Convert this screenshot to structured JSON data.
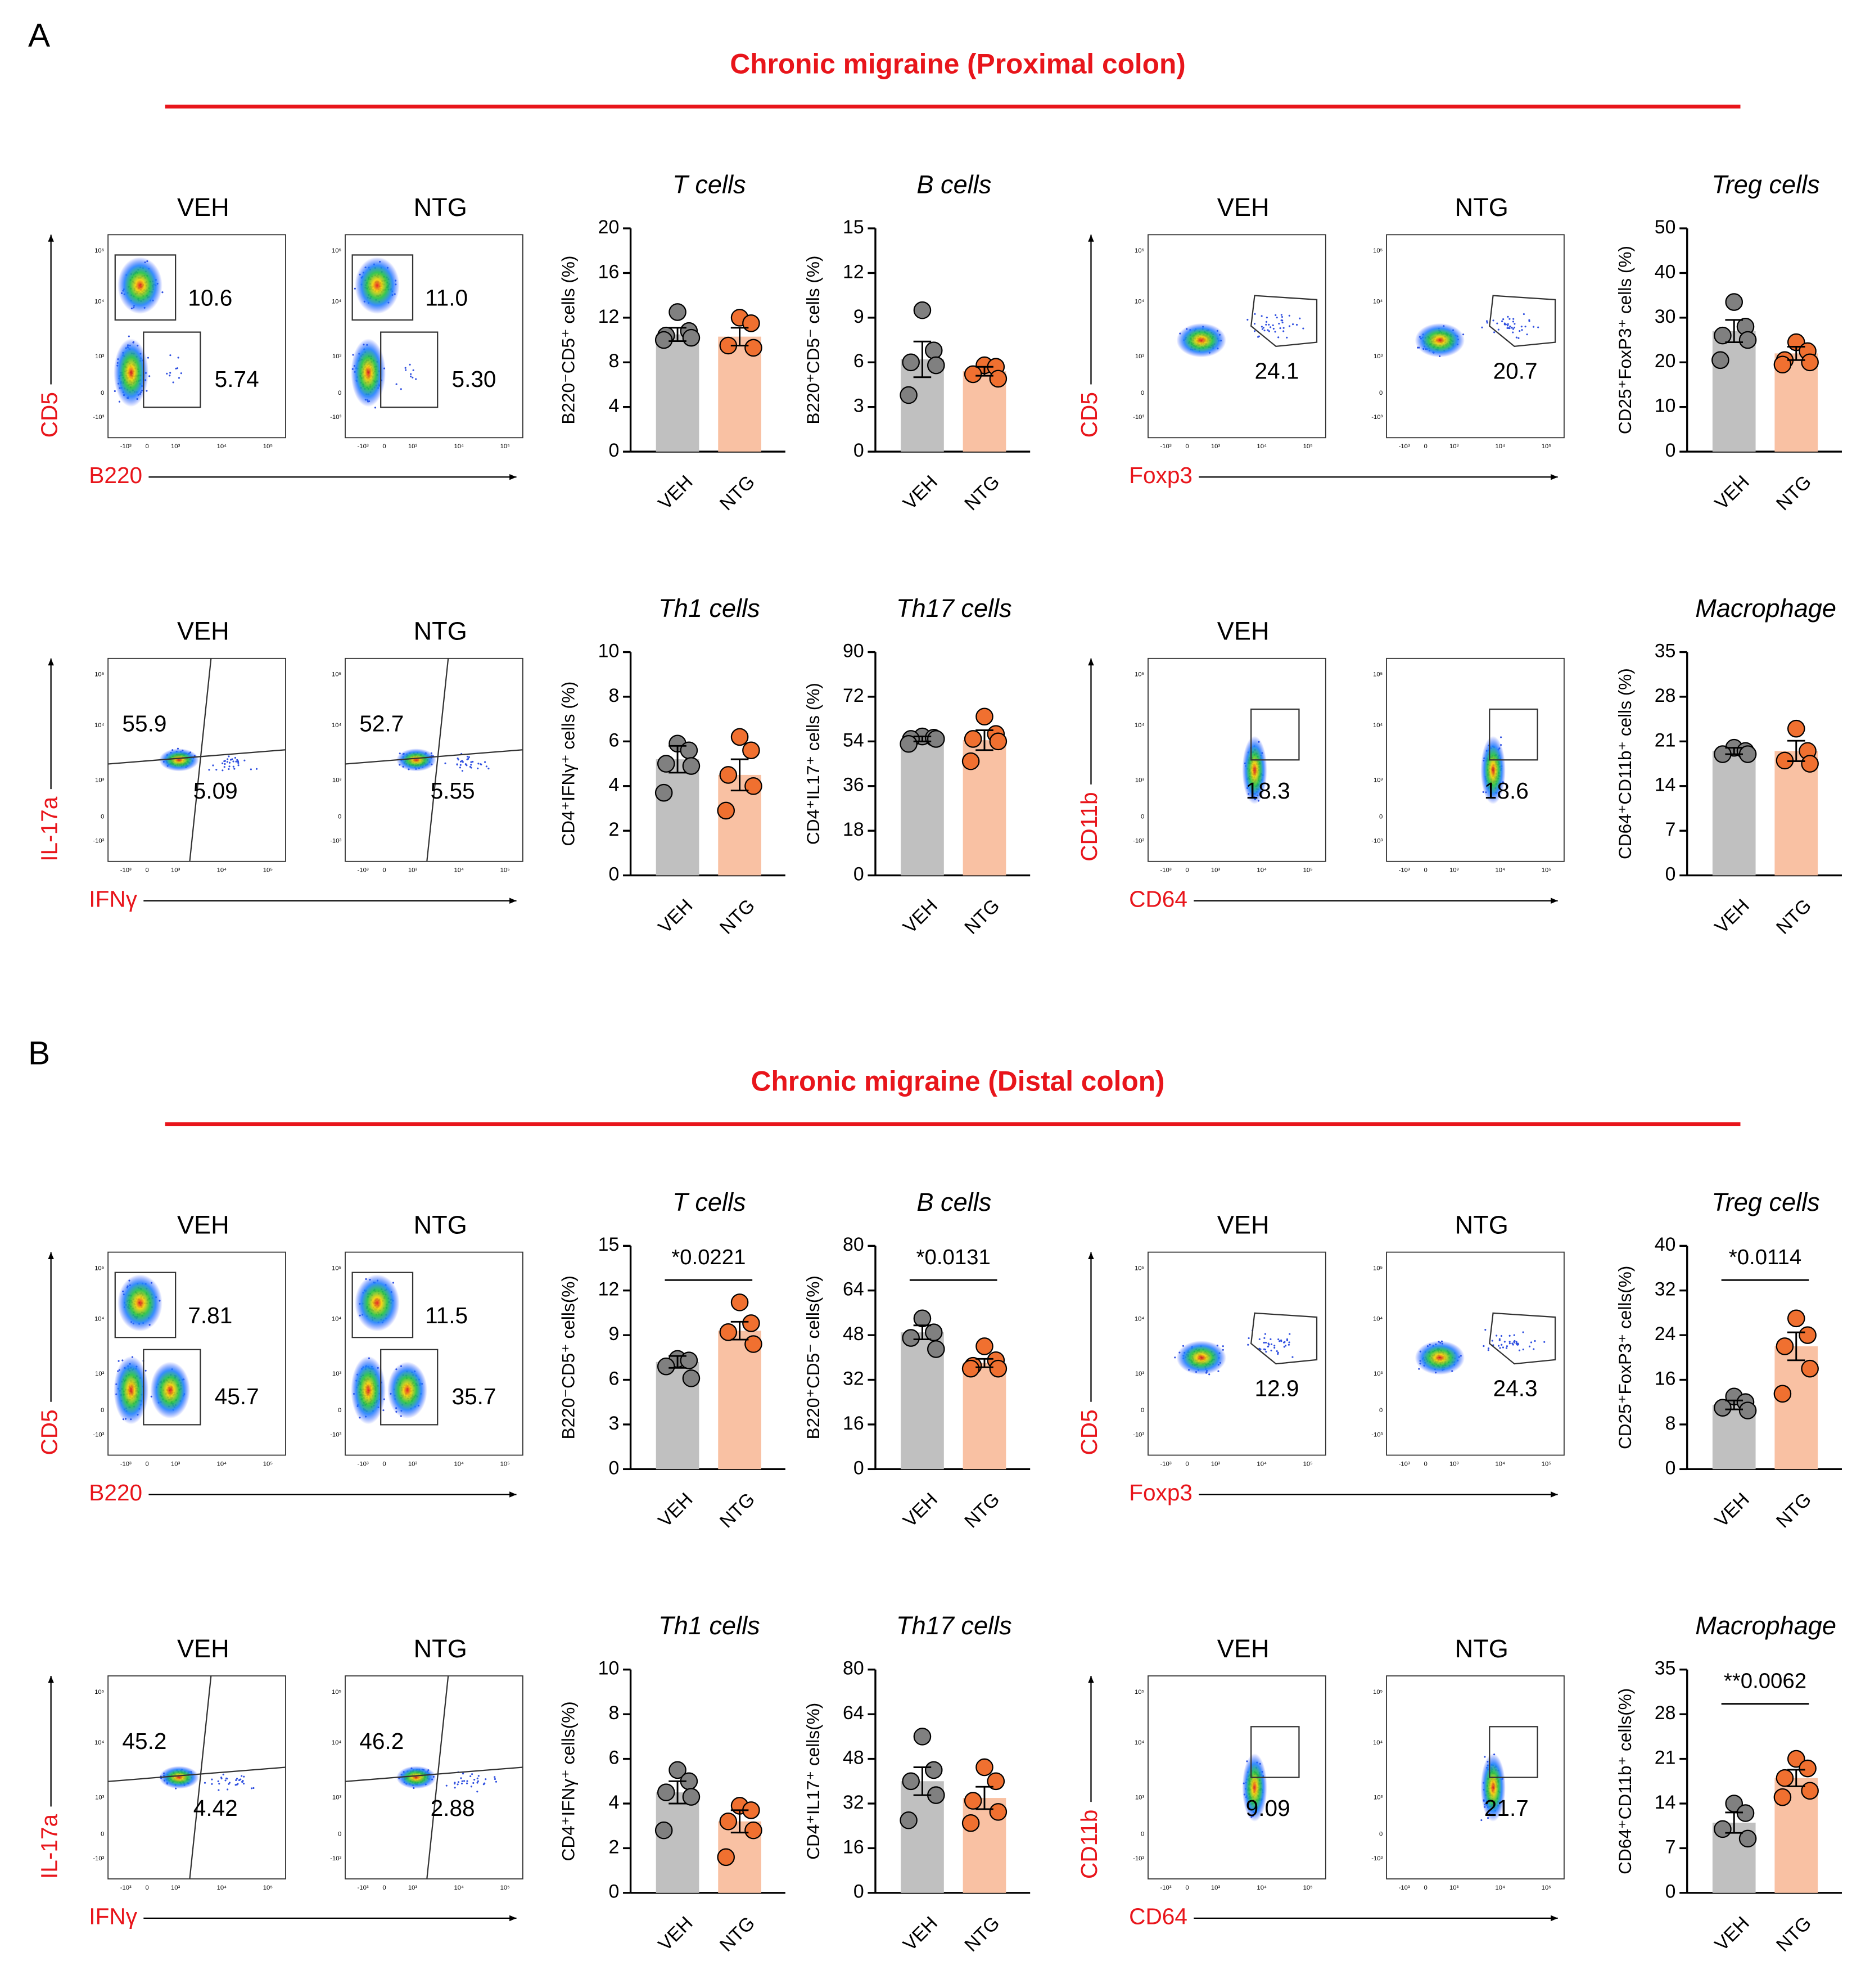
{
  "panels": [
    {
      "letter": "A",
      "title": "Chronic migraine (Proximal colon)",
      "flows": [
        {
          "y_label": "CD5",
          "x_label": "B220",
          "plots": [
            {
              "label": "VEH",
              "gates": [
                "10.6",
                "5.74"
              ]
            },
            {
              "label": "NTG",
              "gates": [
                "11.0",
                "5.30"
              ]
            }
          ]
        },
        {
          "y_label": "CD5",
          "x_label": "Foxp3",
          "plots": [
            {
              "label": "VEH",
              "gates": [
                "24.1"
              ]
            },
            {
              "label": "NTG",
              "gates": [
                "20.7"
              ]
            }
          ]
        },
        {
          "y_label": "IL-17a",
          "x_label": "IFNγ",
          "plots": [
            {
              "label": "VEH",
              "gates": [
                "55.9",
                "5.09"
              ]
            },
            {
              "label": "NTG",
              "gates": [
                "52.7",
                "5.55"
              ]
            }
          ]
        },
        {
          "y_label": "CD11b",
          "x_label": "CD64",
          "plots": [
            {
              "label": "VEH",
              "gates": [
                "18.3"
              ]
            },
            {
              "gates": [
                "18.6"
              ]
            }
          ]
        }
      ]
    },
    {
      "letter": "B",
      "title": "Chronic migraine (Distal colon)",
      "flows": [
        {
          "y_label": "CD5",
          "x_label": "B220",
          "plots": [
            {
              "label": "VEH",
              "gates": [
                "7.81",
                "45.7"
              ]
            },
            {
              "label": "NTG",
              "gates": [
                "11.5",
                "35.7"
              ]
            }
          ]
        },
        {
          "y_label": "CD5",
          "x_label": "Foxp3",
          "plots": [
            {
              "label": "VEH",
              "gates": [
                "12.9"
              ]
            },
            {
              "label": "NTG",
              "gates": [
                "24.3"
              ]
            }
          ]
        },
        {
          "y_label": "IL-17a",
          "x_label": "IFNγ",
          "plots": [
            {
              "label": "VEH",
              "gates": [
                "45.2",
                "4.42"
              ]
            },
            {
              "label": "NTG",
              "gates": [
                "46.2",
                "2.88"
              ]
            }
          ]
        },
        {
          "y_label": "CD11b",
          "x_label": "CD64",
          "plots": [
            {
              "label": "VEH",
              "gates": [
                "9.09"
              ]
            },
            {
              "label": "NTG",
              "gates": [
                "21.7"
              ]
            }
          ]
        }
      ]
    }
  ],
  "flow_axis_ticks": [
    "-10³",
    "0",
    "10³",
    "10⁴",
    "10⁵"
  ],
  "chart_data": [
    {
      "type": "bar",
      "title": "T cells",
      "ylabel": "B220⁻CD5⁺ cells (%)",
      "categories": [
        "VEH",
        "NTG"
      ],
      "values": [
        10.5,
        10.3
      ],
      "errors": [
        0.6,
        0.8
      ],
      "points": [
        [
          12.5,
          10.8,
          10.4,
          10.2,
          10
        ],
        [
          12,
          11.5,
          9.5,
          9.3
        ]
      ],
      "colors": [
        "#c0c0c0",
        "#f9c1a3"
      ],
      "point_colors": [
        "#808080",
        "#f07030"
      ],
      "ylim": [
        0,
        20
      ],
      "yticks": [
        0,
        4,
        8,
        12,
        16,
        20
      ]
    },
    {
      "type": "bar",
      "title": "B cells",
      "ylabel": "B220⁺CD5⁻ cells (%)",
      "categories": [
        "VEH",
        "NTG"
      ],
      "values": [
        6.2,
        5.4
      ],
      "errors": [
        1.2,
        0.3
      ],
      "points": [
        [
          9.5,
          6.8,
          6,
          5.8,
          3.8
        ],
        [
          5.8,
          5.7,
          5.2,
          4.9
        ]
      ],
      "colors": [
        "#c0c0c0",
        "#f9c1a3"
      ],
      "point_colors": [
        "#808080",
        "#f07030"
      ],
      "ylim": [
        0,
        15
      ],
      "yticks": [
        0,
        3,
        6,
        9,
        12,
        15
      ]
    },
    {
      "type": "bar",
      "title": "Treg cells",
      "ylabel": "CD25⁺FoxP3⁺ cells (%)",
      "categories": [
        "VEH",
        "NTG"
      ],
      "values": [
        27,
        22
      ],
      "errors": [
        2.5,
        1.5
      ],
      "points": [
        [
          33.5,
          28,
          26,
          25,
          20.5
        ],
        [
          24.5,
          22.5,
          20.5,
          20,
          19.5
        ]
      ],
      "colors": [
        "#c0c0c0",
        "#f9c1a3"
      ],
      "point_colors": [
        "#808080",
        "#f07030"
      ],
      "ylim": [
        0,
        50
      ],
      "yticks": [
        0,
        10,
        20,
        30,
        40,
        50
      ]
    },
    {
      "type": "bar",
      "title": "Th1 cells",
      "ylabel": "CD4⁺IFNγ⁺ cells (%)",
      "categories": [
        "VEH",
        "NTG"
      ],
      "values": [
        5.2,
        4.5
      ],
      "errors": [
        0.6,
        0.7
      ],
      "points": [
        [
          5.9,
          5.6,
          5,
          4.9,
          3.7
        ],
        [
          6.2,
          5.6,
          4.5,
          4,
          2.9
        ]
      ],
      "colors": [
        "#c0c0c0",
        "#f9c1a3"
      ],
      "point_colors": [
        "#808080",
        "#f07030"
      ],
      "ylim": [
        0,
        10
      ],
      "yticks": [
        0,
        2,
        4,
        6,
        8,
        10
      ]
    },
    {
      "type": "bar",
      "title": "Th17 cells",
      "ylabel": "CD4⁺IL17⁺ cells (%)",
      "categories": [
        "VEH",
        "NTG"
      ],
      "values": [
        55,
        54.5
      ],
      "errors": [
        1,
        4
      ],
      "points": [
        [
          56,
          55.5,
          55,
          55,
          53
        ],
        [
          64,
          57,
          55,
          54,
          46
        ]
      ],
      "colors": [
        "#c0c0c0",
        "#f9c1a3"
      ],
      "point_colors": [
        "#808080",
        "#f07030"
      ],
      "ylim": [
        0,
        90
      ],
      "yticks": [
        0,
        18,
        36,
        54,
        72,
        90
      ]
    },
    {
      "type": "bar",
      "title": "Macrophage",
      "ylabel": "CD64⁺CD11b⁺ cells (%)",
      "categories": [
        "VEH",
        "NTG"
      ],
      "values": [
        19.5,
        19.5
      ],
      "errors": [
        0.5,
        1.6
      ],
      "points": [
        [
          20,
          19.5,
          19,
          19
        ],
        [
          23,
          19.5,
          18,
          17.5
        ]
      ],
      "colors": [
        "#c0c0c0",
        "#f9c1a3"
      ],
      "point_colors": [
        "#808080",
        "#f07030"
      ],
      "ylim": [
        0,
        35
      ],
      "yticks": [
        0,
        7,
        14,
        21,
        28,
        35
      ]
    },
    {
      "type": "bar",
      "title": "T cells",
      "ylabel": "B220⁻CD5⁺ cells(%)",
      "categories": [
        "VEH",
        "NTG"
      ],
      "values": [
        7.2,
        9.3
      ],
      "errors": [
        0.4,
        0.6
      ],
      "points": [
        [
          7.4,
          7.3,
          6.9,
          6.1
        ],
        [
          11.2,
          9.8,
          9.2,
          8.4
        ]
      ],
      "colors": [
        "#c0c0c0",
        "#f9c1a3"
      ],
      "point_colors": [
        "#808080",
        "#f07030"
      ],
      "ylim": [
        0,
        15
      ],
      "yticks": [
        0,
        3,
        6,
        9,
        12,
        15
      ],
      "annotation": "*0.0221"
    },
    {
      "type": "bar",
      "title": "B cells",
      "ylabel": "B220⁺CD5⁻ cells(%)",
      "categories": [
        "VEH",
        "NTG"
      ],
      "values": [
        49,
        38
      ],
      "errors": [
        2.5,
        1.5
      ],
      "points": [
        [
          54,
          49,
          47,
          43
        ],
        [
          44,
          39,
          37,
          36,
          36
        ]
      ],
      "colors": [
        "#c0c0c0",
        "#f9c1a3"
      ],
      "point_colors": [
        "#808080",
        "#f07030"
      ],
      "ylim": [
        0,
        80
      ],
      "yticks": [
        0,
        16,
        32,
        48,
        64,
        80
      ],
      "annotation": "*0.0131"
    },
    {
      "type": "bar",
      "title": "Treg cells",
      "ylabel": "CD25⁺FoxP3⁺ cells(%)",
      "categories": [
        "VEH",
        "NTG"
      ],
      "values": [
        11.5,
        22
      ],
      "errors": [
        0.8,
        2.5
      ],
      "points": [
        [
          13,
          12,
          11,
          10.5
        ],
        [
          27,
          24,
          22,
          18,
          13.5
        ]
      ],
      "colors": [
        "#c0c0c0",
        "#f9c1a3"
      ],
      "point_colors": [
        "#808080",
        "#f07030"
      ],
      "ylim": [
        0,
        40
      ],
      "yticks": [
        0,
        8,
        16,
        24,
        32,
        40
      ],
      "annotation": "*0.0114"
    },
    {
      "type": "bar",
      "title": "Th1 cells",
      "ylabel": "CD4⁺IFNγ⁺ cells(%)",
      "categories": [
        "VEH",
        "NTG"
      ],
      "values": [
        4.5,
        3.2
      ],
      "errors": [
        0.5,
        0.5
      ],
      "points": [
        [
          5.5,
          5,
          4.5,
          4.3,
          2.8
        ],
        [
          3.9,
          3.7,
          3.2,
          2.8,
          1.6
        ]
      ],
      "colors": [
        "#c0c0c0",
        "#f9c1a3"
      ],
      "point_colors": [
        "#808080",
        "#f07030"
      ],
      "ylim": [
        0,
        10
      ],
      "yticks": [
        0,
        2,
        4,
        6,
        8,
        10
      ]
    },
    {
      "type": "bar",
      "title": "Th17 cells",
      "ylabel": "CD4⁺IL17⁺ cells(%)",
      "categories": [
        "VEH",
        "NTG"
      ],
      "values": [
        40,
        34
      ],
      "errors": [
        5,
        4
      ],
      "points": [
        [
          56,
          44,
          40,
          35,
          26
        ],
        [
          45,
          40,
          33,
          29,
          25
        ]
      ],
      "colors": [
        "#c0c0c0",
        "#f9c1a3"
      ],
      "point_colors": [
        "#808080",
        "#f07030"
      ],
      "ylim": [
        0,
        80
      ],
      "yticks": [
        0,
        16,
        32,
        48,
        64,
        80
      ]
    },
    {
      "type": "bar",
      "title": "Macrophage",
      "ylabel": "CD64⁺CD11b⁺ cells(%)",
      "categories": [
        "VEH",
        "NTG"
      ],
      "values": [
        11,
        18
      ],
      "errors": [
        1.6,
        1.3
      ],
      "points": [
        [
          14,
          12.5,
          10,
          8.5
        ],
        [
          21,
          19.5,
          18,
          16,
          15
        ]
      ],
      "colors": [
        "#c0c0c0",
        "#f9c1a3"
      ],
      "point_colors": [
        "#808080",
        "#f07030"
      ],
      "ylim": [
        0,
        35
      ],
      "yticks": [
        0,
        7,
        14,
        21,
        28,
        35
      ],
      "annotation": "**0.0062"
    }
  ]
}
